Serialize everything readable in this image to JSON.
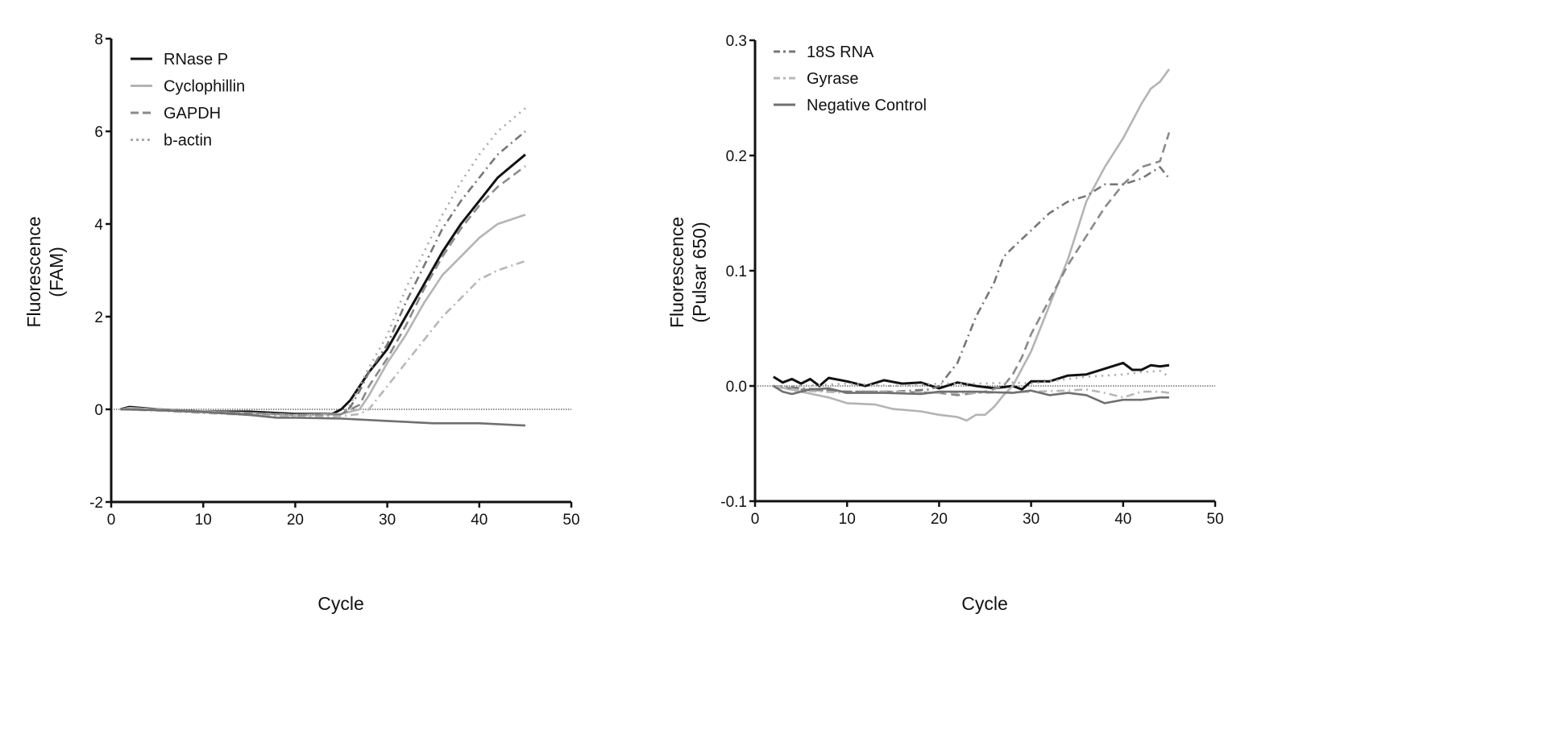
{
  "chart_data": [
    {
      "type": "line",
      "title": "",
      "xlabel": "Cycle",
      "ylabel": [
        "Fluorescence",
        "(FAM)"
      ],
      "xlim": [
        0,
        50
      ],
      "ylim": [
        -2,
        8
      ],
      "xticks": [
        "0",
        "10",
        "20",
        "30",
        "40",
        "50"
      ],
      "yticks": [
        "-2",
        "0",
        "2",
        "4",
        "6",
        "8"
      ],
      "xtick_values": [
        0,
        10,
        20,
        30,
        40,
        50
      ],
      "ytick_values": [
        -2,
        0,
        2,
        4,
        6,
        8
      ],
      "baseline": 0,
      "legend": {
        "placement": "top-left",
        "entries": [
          0,
          1,
          2,
          3
        ]
      },
      "series": [
        {
          "name": "RNase P",
          "color": "#111111",
          "style": "solid",
          "x": [
            1,
            2,
            5,
            10,
            15,
            20,
            24,
            25,
            26,
            27,
            28,
            30,
            32,
            34,
            36,
            38,
            40,
            42,
            45
          ],
          "y": [
            0,
            0.05,
            0,
            -0.05,
            -0.05,
            -0.1,
            -0.1,
            0,
            0.2,
            0.5,
            0.8,
            1.3,
            2.0,
            2.7,
            3.4,
            4.0,
            4.5,
            5.0,
            5.5
          ]
        },
        {
          "name": "Cyclophillin",
          "color": "#b4b4b4",
          "style": "solid",
          "x": [
            1,
            2,
            5,
            10,
            15,
            20,
            25,
            27,
            28,
            30,
            32,
            34,
            36,
            38,
            40,
            42,
            45
          ],
          "y": [
            0,
            0.03,
            0,
            -0.05,
            -0.08,
            -0.12,
            -0.1,
            0,
            0.3,
            1.0,
            1.6,
            2.3,
            2.9,
            3.3,
            3.7,
            4.0,
            4.2
          ]
        },
        {
          "name": "GAPDH",
          "color": "#8a8a8a",
          "style": "dashed",
          "x": [
            1,
            5,
            10,
            15,
            20,
            25,
            27,
            28,
            30,
            32,
            34,
            36,
            38,
            40,
            42,
            45
          ],
          "y": [
            0,
            0,
            -0.05,
            -0.08,
            -0.12,
            -0.1,
            0.1,
            0.5,
            1.1,
            1.8,
            2.6,
            3.3,
            3.9,
            4.4,
            4.8,
            5.25
          ]
        },
        {
          "name": "b-actin",
          "color": "#a8a8a8",
          "style": "dotted",
          "x": [
            1,
            5,
            10,
            15,
            20,
            25,
            26,
            27,
            28,
            30,
            32,
            34,
            36,
            38,
            40,
            42,
            45
          ],
          "y": [
            0,
            -0.02,
            -0.06,
            -0.1,
            -0.13,
            -0.1,
            0.1,
            0.5,
            0.9,
            1.6,
            2.6,
            3.4,
            4.2,
            4.9,
            5.5,
            6.0,
            6.5
          ]
        },
        {
          "name": "18S RNA",
          "color": "#777777",
          "style": "dashdot",
          "x": [
            1,
            5,
            10,
            15,
            20,
            25,
            26,
            27,
            28,
            30,
            32,
            34,
            36,
            38,
            40,
            42,
            45
          ],
          "y": [
            0,
            -0.02,
            -0.06,
            -0.1,
            -0.15,
            -0.12,
            0.05,
            0.4,
            0.8,
            1.4,
            2.3,
            3.1,
            3.9,
            4.5,
            5.0,
            5.5,
            6.0
          ]
        },
        {
          "name": "Gyrase",
          "color": "#b8b8b8",
          "style": "dashdot",
          "x": [
            1,
            5,
            10,
            15,
            20,
            25,
            27,
            28,
            30,
            32,
            34,
            36,
            38,
            40,
            42,
            45
          ],
          "y": [
            0,
            -0.03,
            -0.08,
            -0.12,
            -0.16,
            -0.15,
            -0.1,
            0,
            0.5,
            1.0,
            1.5,
            2.0,
            2.4,
            2.8,
            3.0,
            3.2
          ]
        },
        {
          "name": "Negative Control",
          "color": "#707070",
          "style": "solid",
          "x": [
            1,
            5,
            10,
            15,
            18,
            20,
            25,
            30,
            35,
            40,
            45
          ],
          "y": [
            0,
            -0.02,
            -0.06,
            -0.12,
            -0.18,
            -0.18,
            -0.2,
            -0.25,
            -0.3,
            -0.3,
            -0.35
          ]
        }
      ]
    },
    {
      "type": "line",
      "title": "",
      "xlabel": "Cycle",
      "ylabel": [
        "Fluorescence",
        "(Pulsar 650)"
      ],
      "xlim": [
        0,
        50
      ],
      "ylim": [
        -0.1,
        0.3
      ],
      "xticks": [
        "0",
        "10",
        "20",
        "30",
        "40",
        "50"
      ],
      "yticks": [
        "-0.1",
        "0.0",
        "0.1",
        "0.2",
        "0.3"
      ],
      "xtick_values": [
        0,
        10,
        20,
        30,
        40,
        50
      ],
      "ytick_values": [
        -0.1,
        0,
        0.1,
        0.2,
        0.3
      ],
      "baseline": 0,
      "legend": {
        "placement": "top-left",
        "entries": [
          4,
          5,
          6
        ]
      },
      "series": [
        {
          "name": "RNase P",
          "color": "#111111",
          "style": "solid",
          "x": [
            2,
            3,
            4,
            5,
            6,
            7,
            8,
            10,
            12,
            14,
            16,
            18,
            20,
            22,
            24,
            26,
            28,
            29,
            30,
            32,
            34,
            36,
            38,
            40,
            41,
            42,
            43,
            44,
            45
          ],
          "y": [
            0.008,
            0.003,
            0.006,
            0.002,
            0.006,
            0,
            0.007,
            0.004,
            0,
            0.005,
            0.002,
            0.003,
            -0.002,
            0.003,
            0,
            -0.002,
            0,
            -0.003,
            0.004,
            0.004,
            0.009,
            0.01,
            0.015,
            0.02,
            0.014,
            0.014,
            0.018,
            0.017,
            0.018
          ]
        },
        {
          "name": "Cyclophillin",
          "color": "#b4b4b4",
          "style": "solid",
          "x": [
            2,
            5,
            8,
            10,
            13,
            15,
            18,
            20,
            22,
            23,
            24,
            25,
            26,
            27,
            28,
            30,
            32,
            34,
            36,
            38,
            40,
            42,
            43,
            44,
            45
          ],
          "y": [
            0,
            -0.005,
            -0.01,
            -0.015,
            -0.016,
            -0.02,
            -0.022,
            -0.025,
            -0.027,
            -0.03,
            -0.025,
            -0.025,
            -0.018,
            -0.008,
            0.0,
            0.03,
            0.07,
            0.11,
            0.16,
            0.19,
            0.215,
            0.245,
            0.258,
            0.264,
            0.275
          ]
        },
        {
          "name": "GAPDH",
          "color": "#8a8a8a",
          "style": "dashed",
          "x": [
            2,
            5,
            10,
            15,
            20,
            22,
            25,
            27,
            28,
            29,
            30,
            32,
            34,
            36,
            38,
            40,
            42,
            44,
            45
          ],
          "y": [
            0,
            -0.003,
            -0.005,
            -0.005,
            -0.006,
            -0.008,
            -0.005,
            0.0,
            0.01,
            0.025,
            0.045,
            0.075,
            0.105,
            0.13,
            0.155,
            0.175,
            0.19,
            0.195,
            0.22
          ]
        },
        {
          "name": "b-actin",
          "color": "#a8a8a8",
          "style": "dotted",
          "x": [
            2,
            5,
            10,
            15,
            20,
            25,
            28,
            30,
            32,
            36,
            40,
            42,
            44,
            45
          ],
          "y": [
            0,
            0,
            0.002,
            0,
            0.002,
            0.002,
            0.003,
            0.002,
            0.004,
            0.008,
            0.01,
            0.012,
            0.013,
            0.008
          ]
        },
        {
          "name": "18S RNA",
          "color": "#777777",
          "style": "dashdot",
          "x": [
            2,
            5,
            10,
            15,
            19,
            20,
            21,
            22,
            24,
            26,
            27,
            28,
            30,
            32,
            34,
            36,
            38,
            40,
            42,
            44,
            45
          ],
          "y": [
            0,
            -0.002,
            -0.005,
            -0.005,
            -0.003,
            0.0,
            0.01,
            0.02,
            0.06,
            0.09,
            0.112,
            0.12,
            0.135,
            0.15,
            0.16,
            0.165,
            0.175,
            0.175,
            0.18,
            0.19,
            0.18
          ]
        },
        {
          "name": "Gyrase",
          "color": "#b8b8b8",
          "style": "dashdot",
          "x": [
            2,
            5,
            10,
            15,
            20,
            25,
            30,
            34,
            36,
            38,
            40,
            42,
            44,
            45
          ],
          "y": [
            0,
            -0.004,
            -0.006,
            -0.005,
            -0.006,
            -0.006,
            -0.005,
            -0.004,
            -0.003,
            -0.006,
            -0.01,
            -0.005,
            -0.005,
            -0.006
          ]
        },
        {
          "name": "Negative Control",
          "color": "#707070",
          "style": "solid",
          "x": [
            2,
            3,
            4,
            6,
            8,
            10,
            14,
            18,
            20,
            24,
            28,
            30,
            32,
            34,
            36,
            38,
            40,
            42,
            44,
            45
          ],
          "y": [
            0,
            -0.005,
            -0.007,
            -0.003,
            -0.002,
            -0.006,
            -0.006,
            -0.007,
            -0.005,
            -0.005,
            -0.006,
            -0.004,
            -0.008,
            -0.006,
            -0.008,
            -0.015,
            -0.012,
            -0.012,
            -0.01,
            -0.01
          ]
        }
      ]
    }
  ]
}
